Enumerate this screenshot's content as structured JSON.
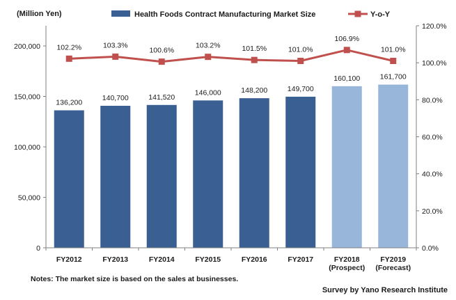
{
  "chart_data": {
    "type": "bar",
    "title": "",
    "unit_label": "(Million Yen)",
    "categories": [
      "FY2012",
      "FY2013",
      "FY2014",
      "FY2015",
      "FY2016",
      "FY2017",
      "FY2018",
      "FY2019"
    ],
    "category_notes": [
      "",
      "",
      "",
      "",
      "",
      "",
      "(Prospect)",
      "(Forecast)"
    ],
    "series": [
      {
        "name": "Health Foods Contract Manufacturing Market Size",
        "axis": "left",
        "values": [
          136200,
          140700,
          141520,
          146000,
          148200,
          149700,
          160100,
          161700
        ],
        "labels": [
          "136,200",
          "140,700",
          "141,520",
          "146,000",
          "148,200",
          "149,700",
          "160,100",
          "161,700"
        ],
        "color": "#3a5f93",
        "projected_color": "#97b6da",
        "projected_from_index": 6
      },
      {
        "name": "Y-o-Y",
        "axis": "right",
        "type": "line",
        "values": [
          102.2,
          103.3,
          100.6,
          103.2,
          101.5,
          101.0,
          106.9,
          101.0
        ],
        "labels": [
          "102.2%",
          "103.3%",
          "100.6%",
          "103.2%",
          "101.5%",
          "101.0%",
          "106.9%",
          "101.0%"
        ],
        "color": "#c0504d"
      }
    ],
    "y_left": {
      "range": [
        0,
        220000
      ],
      "ticks": [
        0,
        50000,
        100000,
        150000,
        200000
      ],
      "tick_labels": [
        "0",
        "50,000",
        "100,000",
        "150,000",
        "200,000"
      ]
    },
    "y_right": {
      "range": [
        0,
        120
      ],
      "ticks": [
        0,
        20,
        40,
        60,
        80,
        100,
        120
      ],
      "tick_labels": [
        "0.0%",
        "20.0%",
        "40.0%",
        "60.0%",
        "80.0%",
        "100.0%",
        "120.0%"
      ]
    },
    "legend_position": "top",
    "grid": false
  },
  "notes": "Notes:  The market size is based on the sales at businesses.",
  "source": "Survey by Yano Research Institute"
}
